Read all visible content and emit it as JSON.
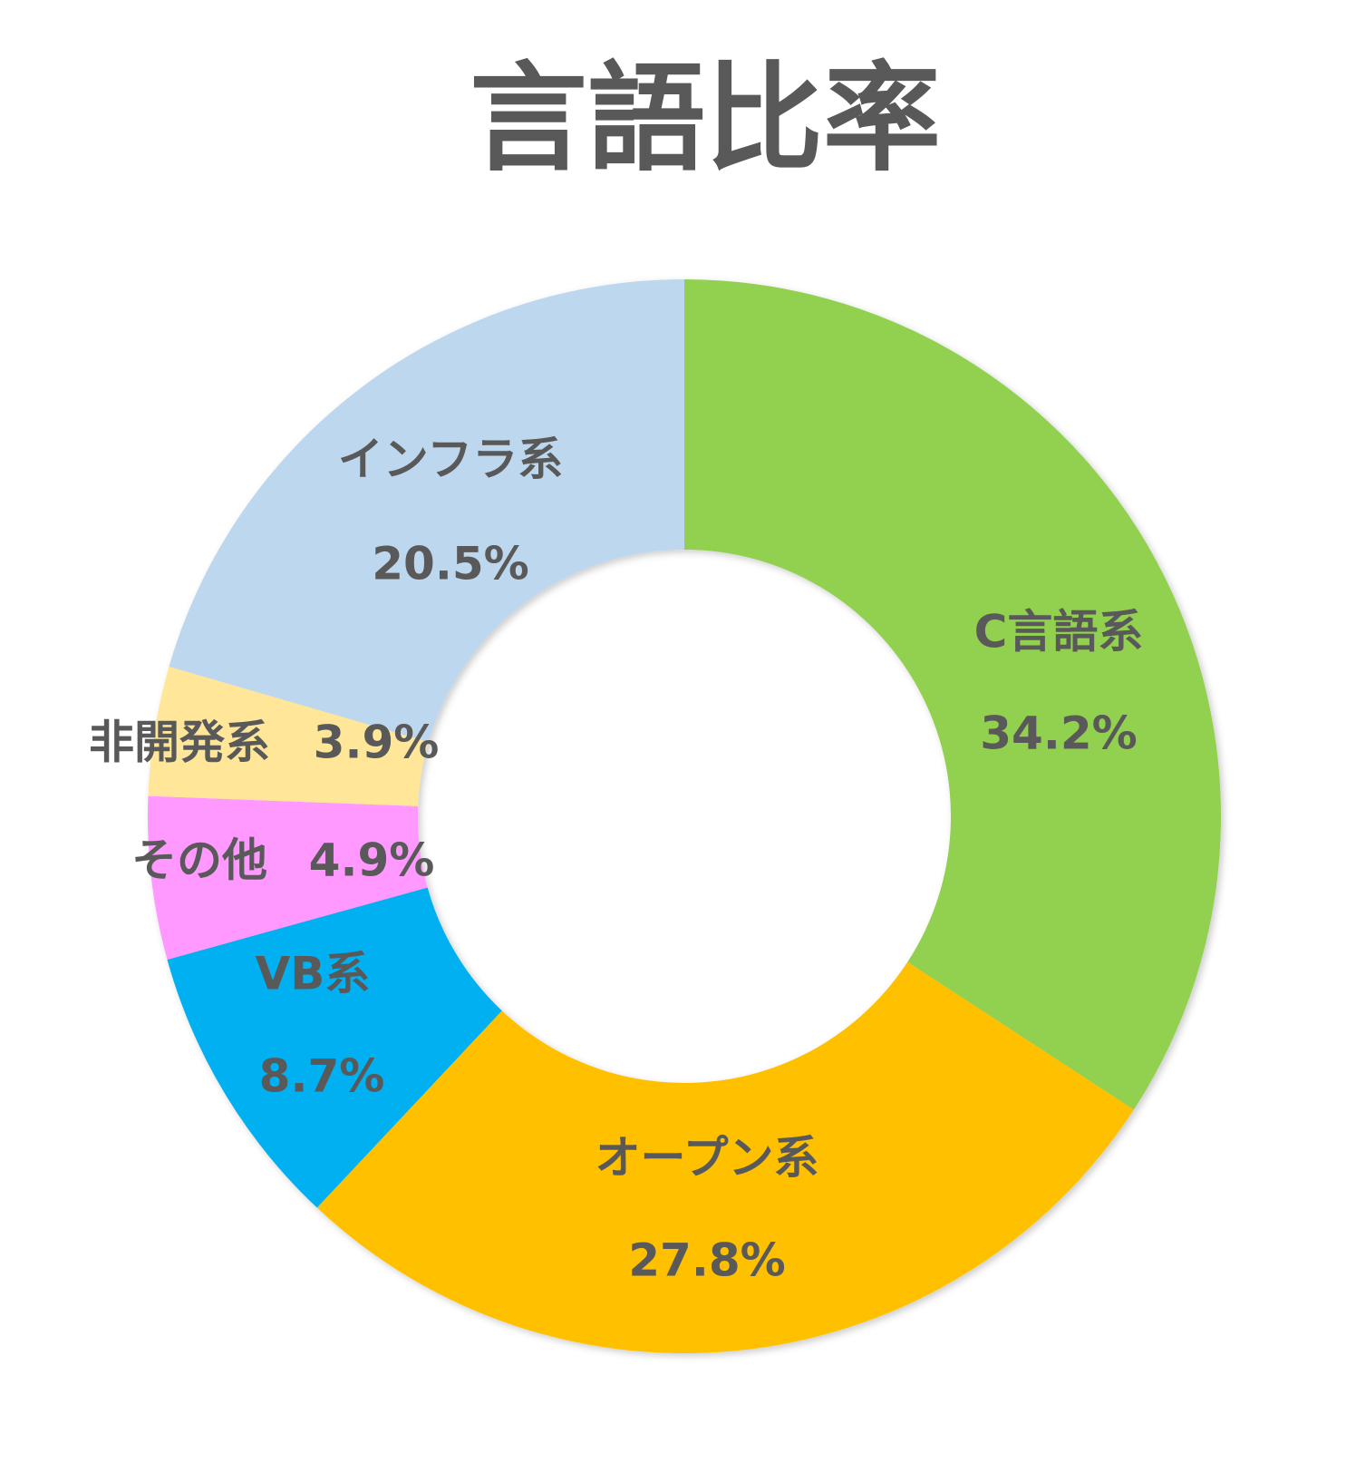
{
  "chart_data": {
    "type": "donut",
    "title": "言語比率",
    "categories": [
      "C言語系",
      "オープン系",
      "VB系",
      "その他",
      "非開発系",
      "インフラ系"
    ],
    "values": [
      34.2,
      27.8,
      8.7,
      4.9,
      3.9,
      20.5
    ],
    "value_labels": [
      "34.2%",
      "27.8%",
      "8.7%",
      "4.9%",
      "3.9%",
      "20.5%"
    ],
    "colors": [
      "#92d050",
      "#ffc000",
      "#00b0f0",
      "#ff99ff",
      "#ffe699",
      "#bdd7ee"
    ]
  }
}
